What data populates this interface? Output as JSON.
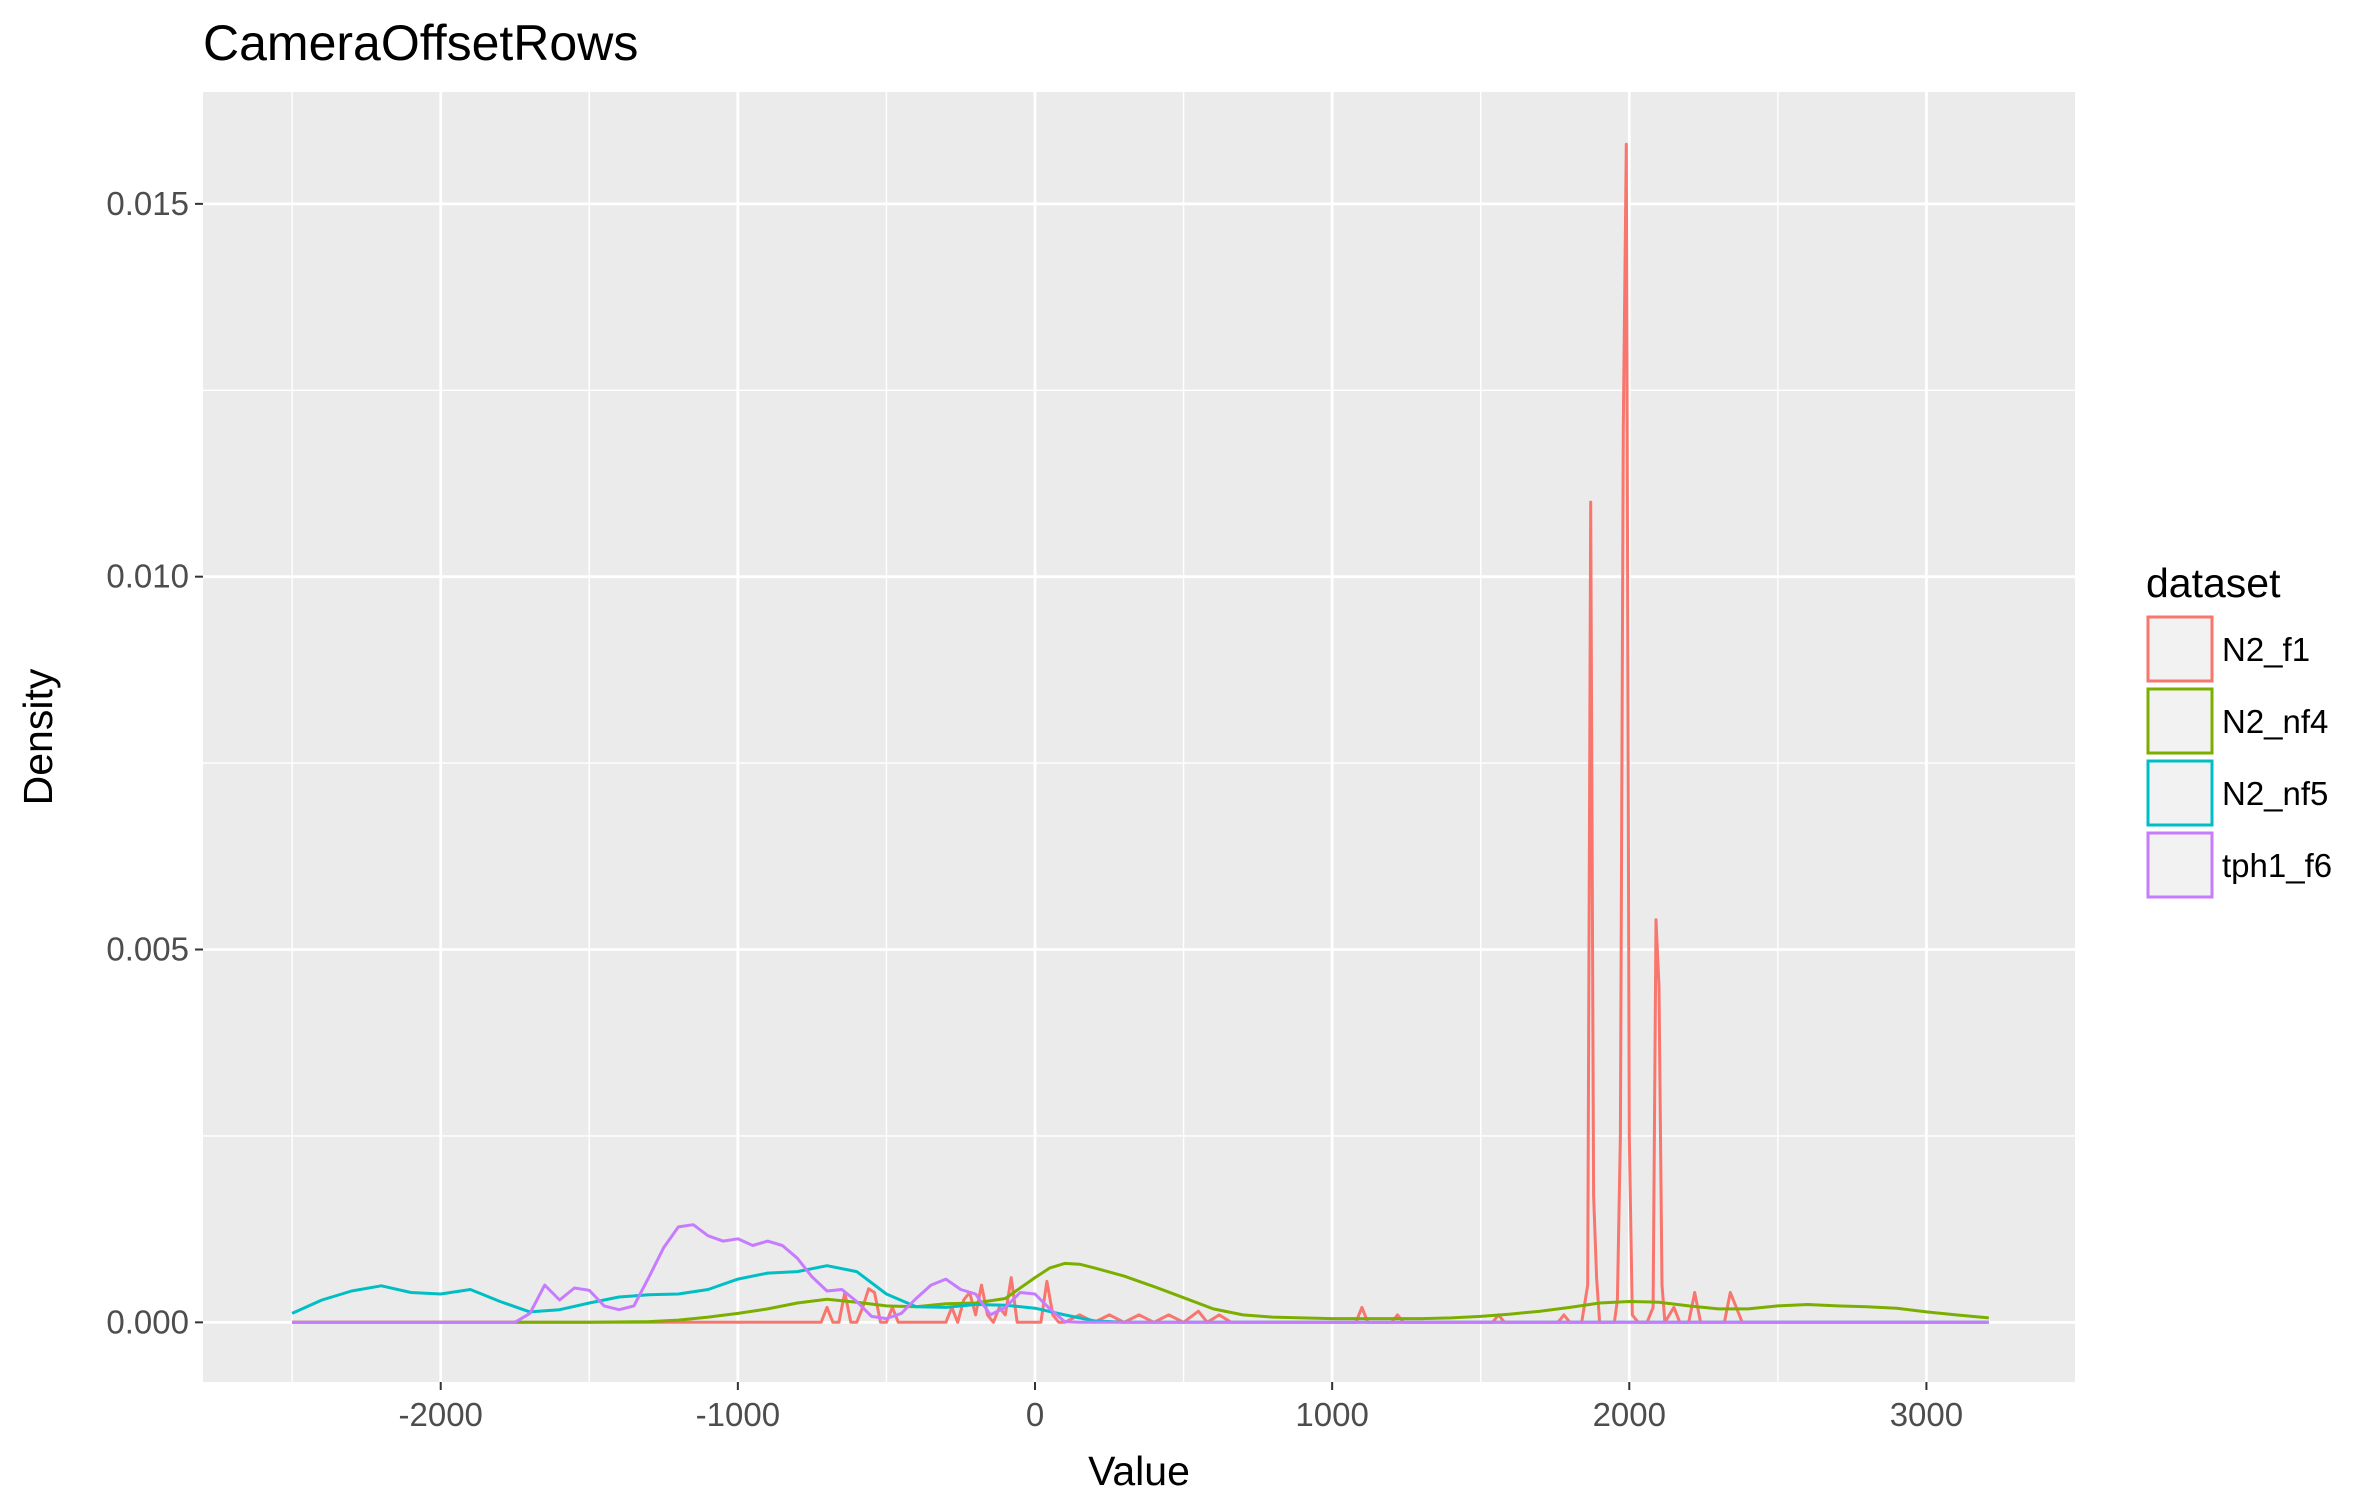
{
  "chart_data": {
    "type": "line",
    "title": "CameraOffsetRows",
    "xlabel": "Value",
    "ylabel": "Density",
    "xlim": [
      -2800,
      3500
    ],
    "ylim": [
      -0.0008,
      0.0165
    ],
    "xticks": [
      -2000,
      -1000,
      0,
      1000,
      2000,
      3000
    ],
    "xtick_labels": [
      "-2000",
      "-1000",
      "0",
      "1000",
      "2000",
      "3000"
    ],
    "yticks": [
      0.0,
      0.005,
      0.01,
      0.015
    ],
    "ytick_labels": [
      "0.000",
      "0.005",
      "0.010",
      "0.015"
    ],
    "grid": true,
    "legend": {
      "title": "dataset",
      "position": "right"
    },
    "series": [
      {
        "name": "N2_f1",
        "color": "#F8766D",
        "x": [
          -2500,
          -720,
          -700,
          -680,
          -660,
          -640,
          -620,
          -600,
          -580,
          -560,
          -540,
          -520,
          -500,
          -480,
          -460,
          -440,
          -300,
          -280,
          -260,
          -240,
          -220,
          -200,
          -180,
          -160,
          -140,
          -120,
          -100,
          -80,
          -60,
          -40,
          0,
          20,
          40,
          60,
          80,
          100,
          150,
          200,
          250,
          300,
          350,
          400,
          450,
          500,
          550,
          580,
          620,
          660,
          1000,
          1080,
          1100,
          1120,
          1200,
          1220,
          1240,
          1540,
          1560,
          1580,
          1760,
          1780,
          1800,
          1840,
          1860,
          1870,
          1880,
          1890,
          1900,
          1920,
          1950,
          1960,
          1970,
          1980,
          1990,
          2000,
          2010,
          2030,
          2060,
          2080,
          2090,
          2100,
          2110,
          2120,
          2150,
          2170,
          2200,
          2220,
          2240,
          2300,
          2320,
          2340,
          2360,
          2380,
          3200
        ],
        "values": [
          0,
          0,
          0.0002,
          0,
          0,
          0.0004,
          0,
          0,
          0.0002,
          0.00045,
          0.0004,
          0,
          0,
          0.0002,
          0,
          0,
          0,
          0.0002,
          0,
          0.0003,
          0.0004,
          0.0001,
          0.0005,
          0.0001,
          0,
          0.0002,
          0.0001,
          0.0006,
          0,
          0,
          0,
          0,
          0.00055,
          0.0001,
          0,
          0,
          0.0001,
          0,
          0.0001,
          0,
          0.0001,
          0,
          0.0001,
          0,
          0.00015,
          0,
          0.0001,
          0,
          0,
          0,
          0.0002,
          0,
          0,
          0.0001,
          0,
          0,
          0.0001,
          0,
          0,
          0.0001,
          0,
          0,
          0.0005,
          0.011,
          0.0017,
          0.0006,
          0,
          0,
          0,
          0.0003,
          0.0025,
          0.012,
          0.0158,
          0.0025,
          0.0001,
          0,
          0,
          0.0002,
          0.0054,
          0.0045,
          0.0005,
          0,
          0.0002,
          0,
          0,
          0.0004,
          0,
          0,
          0,
          0.0004,
          0.0002,
          0,
          0
        ]
      },
      {
        "name": "N2_nf4",
        "color": "#7CAE00",
        "x": [
          -2500,
          -1500,
          -1300,
          -1200,
          -1100,
          -1000,
          -900,
          -800,
          -700,
          -600,
          -500,
          -400,
          -300,
          -200,
          -100,
          0,
          50,
          100,
          150,
          200,
          300,
          400,
          500,
          600,
          700,
          800,
          900,
          1000,
          1100,
          1200,
          1300,
          1400,
          1500,
          1600,
          1700,
          1800,
          1900,
          2000,
          2100,
          2200,
          2300,
          2400,
          2500,
          2600,
          2700,
          2800,
          2900,
          3000,
          3100,
          3210
        ],
        "values": [
          0,
          0,
          1e-05,
          3e-05,
          7e-05,
          0.00012,
          0.00018,
          0.00026,
          0.00031,
          0.00027,
          0.00022,
          0.00021,
          0.00025,
          0.00026,
          0.00032,
          0.0006,
          0.00073,
          0.00079,
          0.00078,
          0.00073,
          0.00062,
          0.00048,
          0.00033,
          0.00018,
          0.0001,
          7e-05,
          6e-05,
          5e-05,
          5e-05,
          5e-05,
          5e-05,
          6e-05,
          8e-05,
          0.00011,
          0.00015,
          0.0002,
          0.00026,
          0.00028,
          0.00027,
          0.00022,
          0.00018,
          0.00018,
          0.00022,
          0.00024,
          0.00022,
          0.00021,
          0.00019,
          0.00014,
          0.0001,
          6e-05
        ]
      },
      {
        "name": "N2_nf5",
        "color": "#00BFC4",
        "x": [
          -2500,
          -2400,
          -2300,
          -2200,
          -2100,
          -2000,
          -1900,
          -1800,
          -1700,
          -1600,
          -1500,
          -1400,
          -1300,
          -1200,
          -1100,
          -1000,
          -900,
          -800,
          -700,
          -600,
          -500,
          -400,
          -300,
          -200,
          -100,
          0,
          100,
          200,
          300,
          400,
          3210
        ],
        "values": [
          0.00012,
          0.0003,
          0.00042,
          0.00049,
          0.0004,
          0.00038,
          0.00044,
          0.00028,
          0.00014,
          0.00017,
          0.00026,
          0.00034,
          0.00037,
          0.00038,
          0.00044,
          0.00058,
          0.00066,
          0.00068,
          0.00076,
          0.00068,
          0.00038,
          0.00021,
          0.0002,
          0.00024,
          0.00023,
          0.00019,
          0.0001,
          2e-05,
          0,
          0,
          0
        ]
      },
      {
        "name": "tph1_f6",
        "color": "#C77CFF",
        "x": [
          -2500,
          -1750,
          -1700,
          -1650,
          -1600,
          -1550,
          -1500,
          -1450,
          -1400,
          -1350,
          -1300,
          -1250,
          -1200,
          -1150,
          -1100,
          -1050,
          -1000,
          -950,
          -900,
          -850,
          -800,
          -750,
          -700,
          -650,
          -600,
          -550,
          -500,
          -450,
          -400,
          -350,
          -300,
          -250,
          -200,
          -150,
          -100,
          -50,
          0,
          50,
          100,
          150,
          3210
        ],
        "values": [
          0,
          0,
          0.00012,
          0.0005,
          0.0003,
          0.00046,
          0.00043,
          0.00022,
          0.00017,
          0.00022,
          0.0006,
          0.001,
          0.00128,
          0.00131,
          0.00116,
          0.00109,
          0.00112,
          0.00103,
          0.00109,
          0.00103,
          0.00086,
          0.00061,
          0.00042,
          0.00044,
          0.00028,
          8e-05,
          5e-05,
          0.00012,
          0.00032,
          0.0005,
          0.00058,
          0.00044,
          0.00038,
          0.0001,
          0.0002,
          0.0004,
          0.00038,
          0.00018,
          1e-05,
          0,
          0
        ]
      }
    ]
  }
}
